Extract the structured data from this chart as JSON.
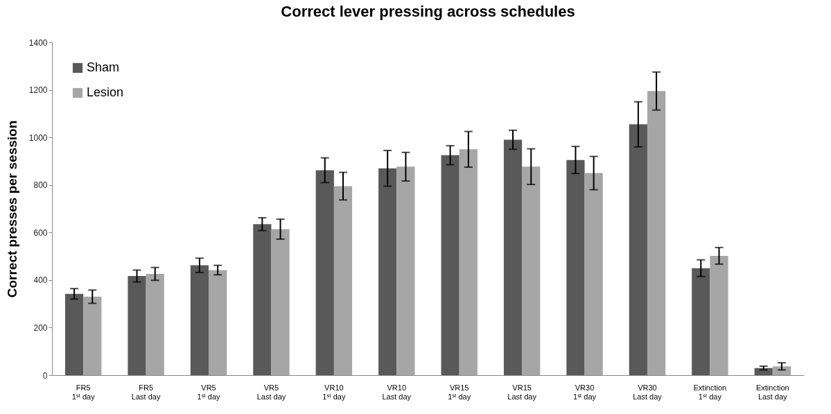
{
  "chart_data": {
    "type": "bar",
    "title": "Correct lever pressing across schedules",
    "ylabel": "Correct presses per session",
    "categories": [
      "FR5\n1ˢᵗ day",
      "FR5\nLast day",
      "VR5\n1ˢᵗ day",
      "VR5\nLast day",
      "VR10\n1ˢᵗ day",
      "VR10\nLast day",
      "VR15\n1ˢᵗ day",
      "VR15\nLast day",
      "VR30\n1ˢᵗ day",
      "VR30\nLast day",
      "Extinction\n1ˢᵗ day",
      "Extinction\nLast day"
    ],
    "series": [
      {
        "name": "Sham",
        "color": "#595959",
        "values": [
          342,
          417,
          462,
          635,
          862,
          870,
          925,
          990,
          905,
          1055,
          450,
          30
        ],
        "errors": [
          22,
          25,
          30,
          27,
          52,
          75,
          40,
          40,
          57,
          95,
          35,
          8
        ]
      },
      {
        "name": "Lesion",
        "color": "#a6a6a6",
        "values": [
          330,
          426,
          442,
          614,
          795,
          877,
          950,
          877,
          850,
          1195,
          502,
          37
        ],
        "errors": [
          28,
          27,
          20,
          42,
          58,
          60,
          75,
          75,
          70,
          80,
          35,
          15
        ]
      }
    ],
    "ylim": [
      0,
      1400
    ],
    "yticks": [
      0,
      200,
      400,
      600,
      800,
      1000,
      1200,
      1400
    ],
    "grid": false,
    "legend": "top left"
  }
}
